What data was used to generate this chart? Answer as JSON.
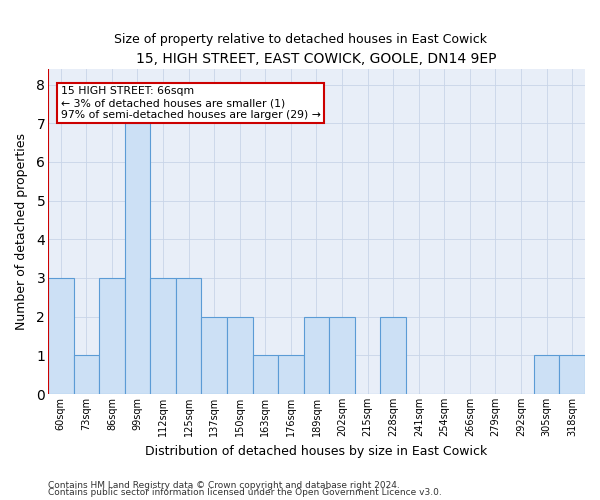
{
  "title": "15, HIGH STREET, EAST COWICK, GOOLE, DN14 9EP",
  "subtitle": "Size of property relative to detached houses in East Cowick",
  "xlabel": "Distribution of detached houses by size in East Cowick",
  "ylabel": "Number of detached properties",
  "categories": [
    "60sqm",
    "73sqm",
    "86sqm",
    "99sqm",
    "112sqm",
    "125sqm",
    "137sqm",
    "150sqm",
    "163sqm",
    "176sqm",
    "189sqm",
    "202sqm",
    "215sqm",
    "228sqm",
    "241sqm",
    "254sqm",
    "266sqm",
    "279sqm",
    "292sqm",
    "305sqm",
    "318sqm"
  ],
  "values": [
    3,
    1,
    3,
    7,
    3,
    3,
    2,
    2,
    1,
    1,
    2,
    2,
    0,
    2,
    0,
    0,
    0,
    0,
    0,
    1,
    1
  ],
  "bar_color": "#cce0f5",
  "bar_edge_color": "#5b9bd5",
  "grid_color": "#c8d4e8",
  "background_color": "#e8eef8",
  "annotation_line1": "15 HIGH STREET: 66sqm",
  "annotation_line2": "← 3% of detached houses are smaller (1)",
  "annotation_line3": "97% of semi-detached houses are larger (29) →",
  "annotation_box_color": "#cc0000",
  "ylim": [
    0,
    8.4
  ],
  "ylim_display": [
    0,
    8
  ],
  "yticks": [
    0,
    1,
    2,
    3,
    4,
    5,
    6,
    7,
    8
  ],
  "footer_line1": "Contains HM Land Registry data © Crown copyright and database right 2024.",
  "footer_line2": "Contains public sector information licensed under the Open Government Licence v3.0."
}
